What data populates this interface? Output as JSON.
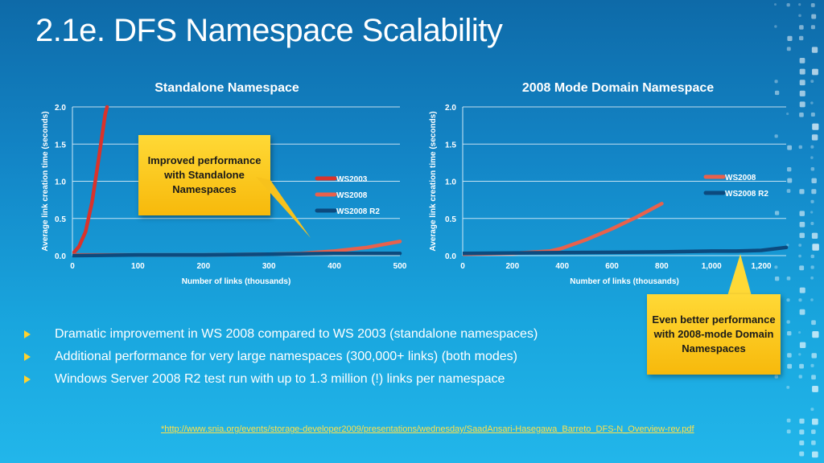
{
  "slide": {
    "title": "2.1e. DFS Namespace Scalability",
    "bullets": [
      "Dramatic improvement in WS 2008 compared to WS 2003 (standalone namespaces)",
      "Additional performance for very large namespaces (300,000+ links) (both modes)",
      "Windows Server 2008 R2 test run with up to 1.3 million (!) links per namespace"
    ],
    "footnote": "*http://www.snia.org/events/storage-developer2009/presentations/wednesday/SaadAnsari-Hasegawa_Barreto_DFS-N_Overview-rev.pdf",
    "callout_left": "Improved performance with Standalone Namespaces",
    "callout_right": "Even better performance with 2008-mode Domain Namespaces",
    "colors": {
      "accent": "#ffd22e",
      "ws2003": "#d9332b",
      "ws2008": "#e8614c",
      "ws2008r2": "#0c4a7e"
    }
  },
  "chart_data": [
    {
      "type": "line",
      "title": "Standalone Namespace",
      "xlabel": "Number of links (thousands)",
      "ylabel": "Average link creation time (seconds)",
      "xlim": [
        0,
        500
      ],
      "ylim": [
        0,
        2.0
      ],
      "xticks": [
        "0",
        "100",
        "200",
        "300",
        "400",
        "500"
      ],
      "yticks": [
        "0.0",
        "0.5",
        "1.0",
        "1.5",
        "2.0"
      ],
      "grid": true,
      "legend_position": "right",
      "series": [
        {
          "name": "WS2003",
          "color": "#d9332b",
          "x": [
            0,
            10,
            20,
            30,
            40,
            50,
            53
          ],
          "y": [
            0.02,
            0.12,
            0.32,
            0.72,
            1.3,
            1.9,
            2.0
          ]
        },
        {
          "name": "WS2008",
          "color": "#e8614c",
          "x": [
            0,
            100,
            200,
            300,
            350,
            400,
            450,
            500
          ],
          "y": [
            0.01,
            0.01,
            0.01,
            0.02,
            0.03,
            0.06,
            0.11,
            0.19
          ]
        },
        {
          "name": "WS2008 R2",
          "color": "#0c4a7e",
          "x": [
            0,
            100,
            200,
            300,
            400,
            500
          ],
          "y": [
            0.0,
            0.01,
            0.01,
            0.02,
            0.03,
            0.03
          ]
        }
      ]
    },
    {
      "type": "line",
      "title": "2008 Mode Domain Namespace",
      "xlabel": "Number of links (thousands)",
      "ylabel": "Average link creation time (seconds)",
      "xlim": [
        0,
        1300
      ],
      "ylim": [
        0,
        2.0
      ],
      "xticks": [
        "0",
        "200",
        "400",
        "600",
        "800",
        "1,000",
        "1,200"
      ],
      "xtick_values": [
        0,
        200,
        400,
        600,
        800,
        1000,
        1200
      ],
      "yticks": [
        "0.0",
        "0.5",
        "1.0",
        "1.5",
        "2.0"
      ],
      "grid": true,
      "legend_position": "top-right",
      "series": [
        {
          "name": "WS2008",
          "color": "#e8614c",
          "x": [
            0,
            200,
            350,
            400,
            500,
            600,
            700,
            800
          ],
          "y": [
            0.02,
            0.03,
            0.06,
            0.1,
            0.22,
            0.36,
            0.52,
            0.7
          ]
        },
        {
          "name": "WS2008 R2",
          "color": "#0c4a7e",
          "x": [
            0,
            400,
            800,
            1000,
            1100,
            1200,
            1300
          ],
          "y": [
            0.03,
            0.04,
            0.05,
            0.06,
            0.06,
            0.07,
            0.11
          ]
        }
      ]
    }
  ]
}
